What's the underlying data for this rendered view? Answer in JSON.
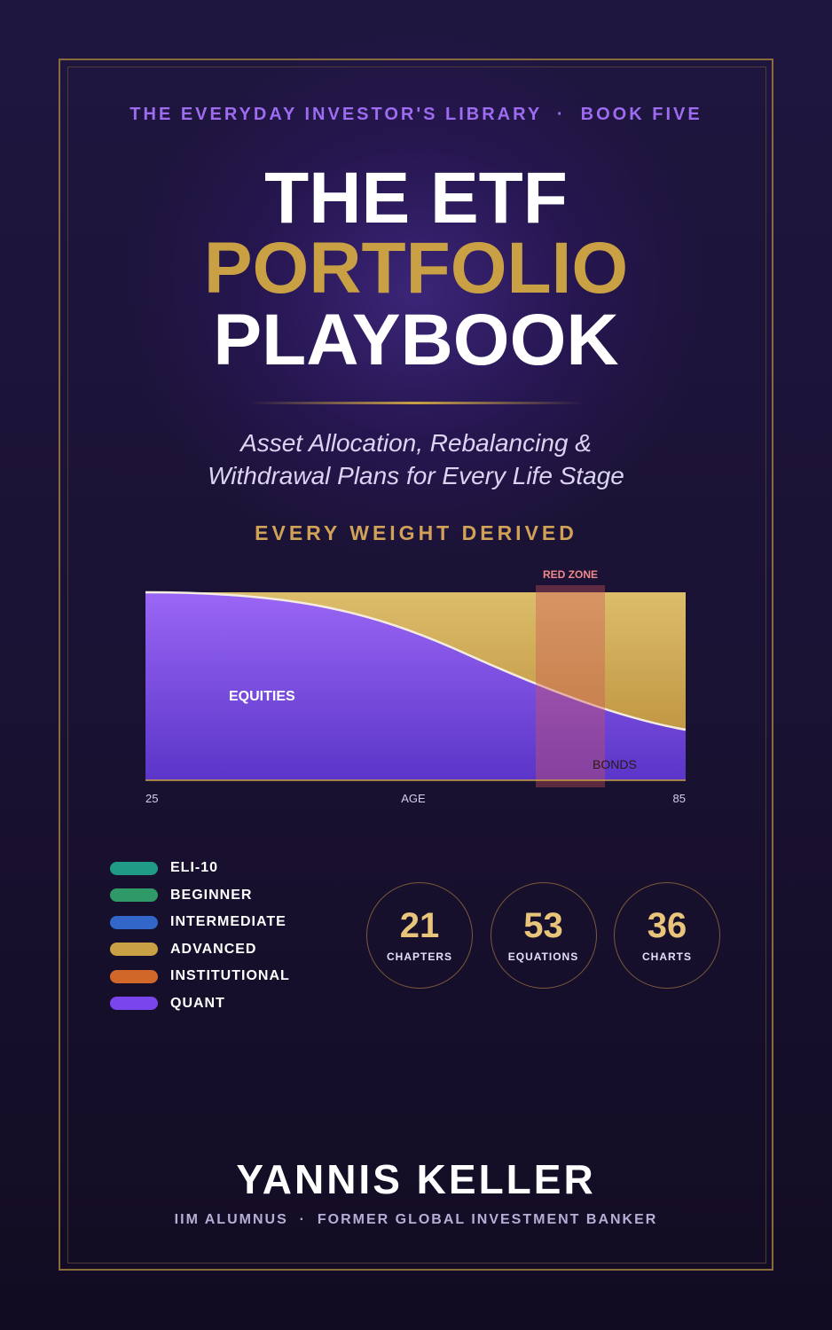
{
  "series_line": "THE EVERYDAY INVESTOR'S LIBRARY  ·  BOOK FIVE",
  "title": [
    "THE ETF",
    "PORTFOLIO",
    "PLAYBOOK"
  ],
  "subtitle": [
    "Asset Allocation, Rebalancing &",
    "Withdrawal Plans for Every Life Stage"
  ],
  "tagline": "EVERY WEIGHT DERIVED",
  "illustration": {
    "zone_label": "RED ZONE",
    "upper_label": "EQUITIES",
    "lower_label": "BONDS",
    "axis_start": "25",
    "axis_label": "AGE",
    "axis_end": "85"
  },
  "levels": [
    {
      "label": "ELI-10",
      "color": "#1f9b86"
    },
    {
      "label": "BEGINNER",
      "color": "#2f9a68"
    },
    {
      "label": "INTERMEDIATE",
      "color": "#3267c9"
    },
    {
      "label": "ADVANCED",
      "color": "#c9a043"
    },
    {
      "label": "INSTITUTIONAL",
      "color": "#d2672a"
    },
    {
      "label": "QUANT",
      "color": "#7b45ee"
    }
  ],
  "stats": [
    {
      "value": 21,
      "label": "CHAPTERS"
    },
    {
      "value": 53,
      "label": "EQUATIONS"
    },
    {
      "value": 36,
      "label": "CHARTS"
    }
  ],
  "author": {
    "name": "YANNIS KELLER",
    "credentials": "IIM ALUMNUS  ·  FORMER GLOBAL INVESTMENT BANKER"
  }
}
